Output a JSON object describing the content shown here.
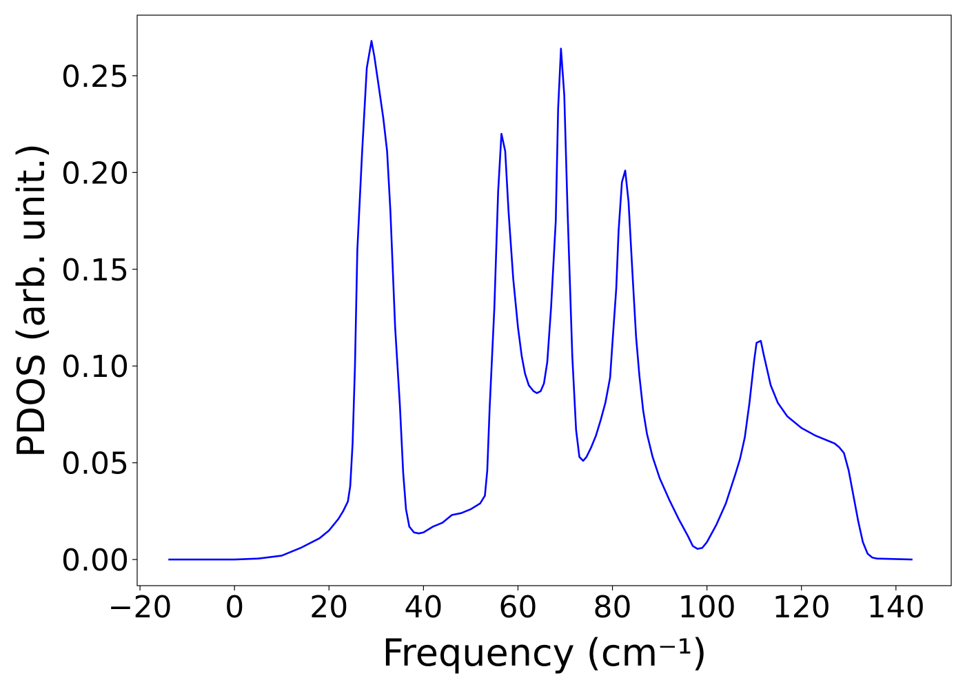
{
  "chart_data": {
    "type": "line",
    "xlabel": "Frequency (cm⁻¹)",
    "ylabel": "PDOS (arb. unit.)",
    "x": [
      -14,
      0,
      5,
      10,
      14,
      18,
      20,
      22,
      23,
      24,
      24.5,
      25,
      25.5,
      26,
      27,
      28,
      29,
      29.6,
      30.5,
      31.5,
      32.3,
      33,
      34,
      35,
      35.7,
      36.3,
      37,
      38,
      39,
      40,
      42,
      44,
      46,
      48,
      50,
      52,
      53,
      53.5,
      54,
      55,
      55.8,
      56.5,
      57.3,
      58,
      59,
      60,
      60.8,
      61.5,
      62.3,
      63.3,
      64,
      64.8,
      65.5,
      66.2,
      67,
      68,
      68.5,
      69.1,
      69.8,
      70.5,
      71.5,
      72.3,
      73,
      73.8,
      74.5,
      75.5,
      76.5,
      77.5,
      78.5,
      79.5,
      80,
      80.8,
      81.3,
      82,
      82.7,
      83.4,
      84.3,
      85,
      85.7,
      86.5,
      87.3,
      88.5,
      90,
      92,
      94,
      96,
      97,
      98,
      99,
      100,
      102,
      104,
      106,
      107,
      108,
      109,
      110,
      110.5,
      111.4,
      112,
      113.5,
      115,
      117,
      120,
      123,
      126,
      127,
      128,
      129,
      130,
      131,
      132,
      133,
      134,
      135,
      136,
      143.5
    ],
    "series": [
      {
        "color": "#0000ff",
        "values": [
          0,
          0,
          0.0005,
          0.002,
          0.006,
          0.011,
          0.015,
          0.021,
          0.025,
          0.03,
          0.038,
          0.06,
          0.1,
          0.16,
          0.21,
          0.254,
          0.268,
          0.26,
          0.245,
          0.228,
          0.211,
          0.18,
          0.12,
          0.08,
          0.045,
          0.026,
          0.017,
          0.014,
          0.0135,
          0.014,
          0.017,
          0.019,
          0.023,
          0.024,
          0.026,
          0.029,
          0.033,
          0.046,
          0.078,
          0.13,
          0.19,
          0.22,
          0.211,
          0.18,
          0.145,
          0.12,
          0.105,
          0.096,
          0.09,
          0.087,
          0.086,
          0.087,
          0.091,
          0.102,
          0.13,
          0.175,
          0.233,
          0.264,
          0.24,
          0.18,
          0.105,
          0.067,
          0.053,
          0.051,
          0.053,
          0.058,
          0.064,
          0.072,
          0.081,
          0.094,
          0.112,
          0.14,
          0.17,
          0.195,
          0.201,
          0.185,
          0.145,
          0.115,
          0.095,
          0.077,
          0.065,
          0.053,
          0.042,
          0.031,
          0.021,
          0.012,
          0.007,
          0.0055,
          0.006,
          0.009,
          0.018,
          0.029,
          0.044,
          0.052,
          0.063,
          0.081,
          0.103,
          0.112,
          0.113,
          0.106,
          0.09,
          0.081,
          0.074,
          0.068,
          0.064,
          0.061,
          0.06,
          0.058,
          0.055,
          0.046,
          0.033,
          0.02,
          0.009,
          0.003,
          0.001,
          0.0005,
          0
        ]
      }
    ],
    "xlim": [
      -20.6,
      151.7
    ],
    "ylim": [
      -0.0135,
      0.2813
    ],
    "xticks": [
      {
        "value": -20,
        "label": "−20"
      },
      0,
      20,
      40,
      60,
      80,
      100,
      120,
      140
    ],
    "yticks": [
      {
        "value": 0,
        "label": "0.00"
      },
      {
        "value": 0.05,
        "label": "0.05"
      },
      {
        "value": 0.1,
        "label": "0.10"
      },
      {
        "value": 0.15,
        "label": "0.15"
      },
      {
        "value": 0.2,
        "label": "0.20"
      },
      {
        "value": 0.25,
        "label": "0.25"
      }
    ],
    "grid": false
  }
}
